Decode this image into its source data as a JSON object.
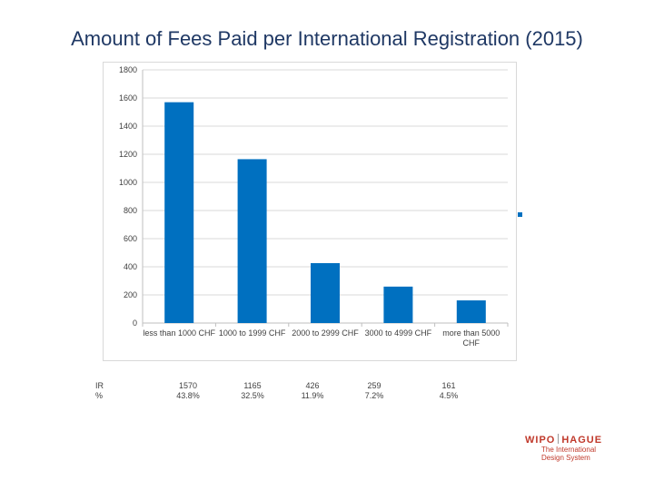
{
  "title": "Amount of Fees Paid per International Registration (2015)",
  "chart_data": {
    "type": "bar",
    "categories": [
      "less than 1000 CHF",
      "1000 to 1999 CHF",
      "2000 to 2999 CHF",
      "3000 to 4999 CHF",
      "more than 5000 CHF"
    ],
    "category_lines": [
      [
        "less than 1000 CHF"
      ],
      [
        "1000 to 1999 CHF"
      ],
      [
        "2000 to 2999 CHF"
      ],
      [
        "3000 to 4999 CHF"
      ],
      [
        "more than 5000",
        "CHF"
      ]
    ],
    "series": [
      {
        "name": "IR",
        "values": [
          1570,
          1165,
          426,
          259,
          161
        ]
      }
    ],
    "yticks": [
      "0",
      "200",
      "400",
      "600",
      "800",
      "1000",
      "1200",
      "1400",
      "1600",
      "1800"
    ],
    "ylim": [
      0,
      1800
    ],
    "grid": true,
    "legend": "right",
    "bar_color": "#0070c0",
    "grid_color": "#d9d9d9"
  },
  "table": {
    "row_labels": [
      "IR",
      "%"
    ],
    "columns": [
      {
        "ir": "1570",
        "pct": "43.8%"
      },
      {
        "ir": "1165",
        "pct": "32.5%"
      },
      {
        "ir": "426",
        "pct": "11.9%"
      },
      {
        "ir": "259",
        "pct": "7.2%"
      },
      {
        "ir": "161",
        "pct": "4.5%"
      }
    ]
  },
  "logo": {
    "left": "WIPO",
    "right": "HAGUE",
    "tagline_1": "The International",
    "tagline_2": "Design System"
  }
}
